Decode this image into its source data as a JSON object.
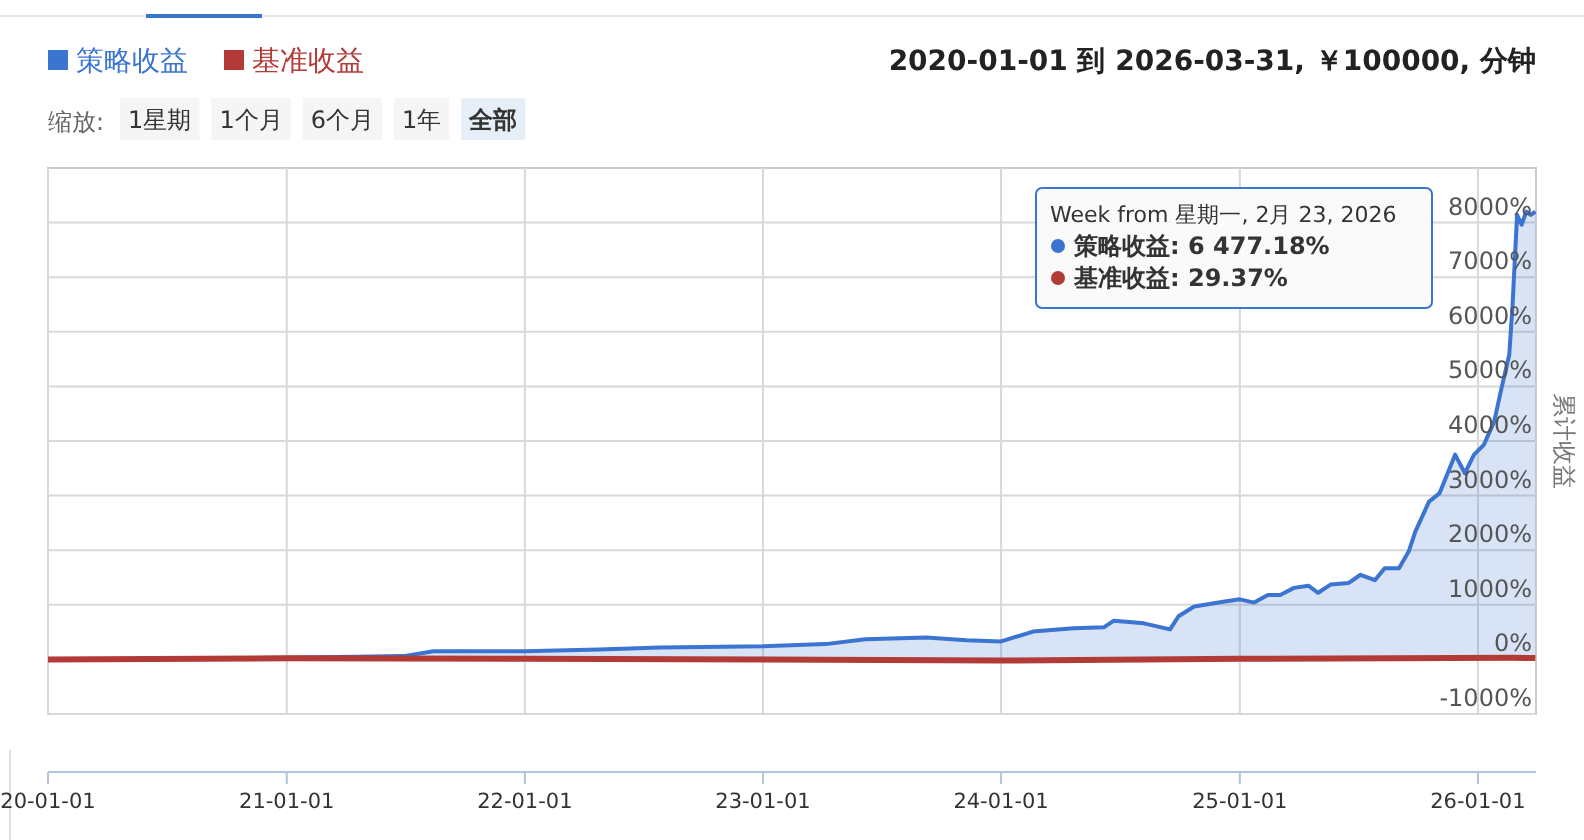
{
  "chart_data": {
    "type": "area",
    "title": "2020-01-01 到 2026-03-31, ￥100000, 分钟",
    "ylabel": "累计收益",
    "legend": "top left",
    "grid": true,
    "annotations": [
      "缩放:",
      "1星期",
      "1个月",
      "6个月",
      "1年",
      "全部",
      "Week from 星期一, 2月 23, 2026",
      "策略收益: 6 477.18%",
      "基准收益: 29.37%"
    ],
    "xlim": [
      "2020-01-01",
      "2026-03-31"
    ],
    "xticks": [
      {
        "value": "2020-01-01",
        "label": "20-01-01"
      },
      {
        "value": "2021-01-01",
        "label": "21-01-01"
      },
      {
        "value": "2022-01-01",
        "label": "22-01-01"
      },
      {
        "value": "2023-01-01",
        "label": "23-01-01"
      },
      {
        "value": "2024-01-01",
        "label": "24-01-01"
      },
      {
        "value": "2025-01-01",
        "label": "25-01-01"
      },
      {
        "value": "2026-01-01",
        "label": "26-01-01"
      }
    ],
    "ylim": [
      -1000,
      9000
    ],
    "yticks": [
      {
        "value": -1000,
        "label": "-1000%"
      },
      {
        "value": 0,
        "label": "0%"
      },
      {
        "value": 1000,
        "label": "1000%"
      },
      {
        "value": 2000,
        "label": "2000%"
      },
      {
        "value": 3000,
        "label": "3000%"
      },
      {
        "value": 4000,
        "label": "4000%"
      },
      {
        "value": 5000,
        "label": "5000%"
      },
      {
        "value": 6000,
        "label": "6000%"
      },
      {
        "value": 7000,
        "label": "7000%"
      },
      {
        "value": 8000,
        "label": "8000%"
      }
    ],
    "series": [
      {
        "name": "策略收益",
        "color": "#3b74d1",
        "x": [
          "2020-01-01",
          "2021-01-01",
          "2021-06-29",
          "2021-08-14",
          "2022-01-01",
          "2022-04-25",
          "2022-07-27",
          "2023-01-01",
          "2023-04-07",
          "2023-06-07",
          "2023-09-08",
          "2023-11-09",
          "2024-01-01",
          "2024-02-19",
          "2024-04-21",
          "2024-06-07",
          "2024-06-22",
          "2024-08-07",
          "2024-09-16",
          "2024-09-29",
          "2024-10-23",
          "2024-12-09",
          "2025-01-01",
          "2025-01-23",
          "2025-02-13",
          "2025-03-04",
          "2025-03-25",
          "2025-04-16",
          "2025-05-01",
          "2025-05-20",
          "2025-06-17",
          "2025-07-05",
          "2025-07-27",
          "2025-08-11",
          "2025-09-02",
          "2025-09-17",
          "2025-09-27",
          "2025-10-18",
          "2025-11-03",
          "2025-11-27",
          "2025-12-12",
          "2025-12-26",
          "2026-01-10",
          "2026-01-26",
          "2026-02-05",
          "2026-02-18",
          "2026-02-23",
          "2026-03-02",
          "2026-03-09",
          "2026-03-16",
          "2026-03-23",
          "2026-03-30"
        ],
        "values": [
          0,
          30,
          60,
          150,
          150,
          180,
          220,
          240,
          280,
          370,
          400,
          350,
          330,
          510,
          570,
          590,
          710,
          660,
          550,
          790,
          970,
          1060,
          1100,
          1040,
          1180,
          1180,
          1310,
          1350,
          1220,
          1370,
          1400,
          1550,
          1450,
          1670,
          1670,
          1980,
          2340,
          2890,
          3040,
          3750,
          3410,
          3750,
          3930,
          4360,
          4910,
          5580,
          6477.18,
          8140,
          7960,
          8200,
          8140,
          8200
        ]
      },
      {
        "name": "基准收益",
        "type": "line",
        "color": "#b23b37",
        "x": [
          "2020-01-01",
          "2021-01-01",
          "2022-01-01",
          "2023-01-01",
          "2024-01-01",
          "2025-01-01",
          "2026-02-23",
          "2026-03-30"
        ],
        "values": [
          0,
          20,
          10,
          0,
          -20,
          10,
          29.37,
          25
        ]
      }
    ]
  }
}
